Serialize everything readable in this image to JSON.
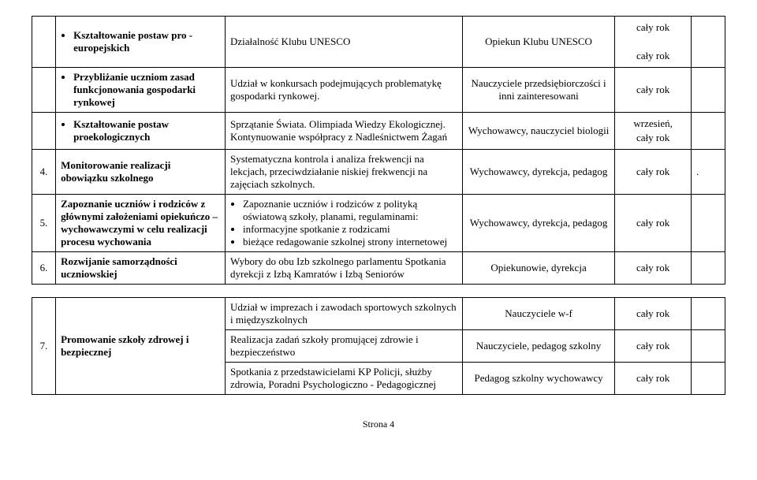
{
  "rows": [
    {
      "num": "",
      "a_items": [
        "Kształtowanie postaw pro - europejskich"
      ],
      "a_bold": true,
      "b_text": "Działalność Klubu UNESCO",
      "c_text": "Opiekun Klubu UNESCO",
      "d_lines": [
        "cały rok",
        "",
        "cały rok"
      ],
      "e_text": ""
    },
    {
      "num": "",
      "a_items": [
        "Przybliżanie uczniom zasad funkcjonowania gospodarki rynkowej"
      ],
      "a_bold": true,
      "b_text": "Udział w konkursach podejmujących problematykę gospodarki rynkowej.",
      "c_text": "Nauczyciele przedsiębiorczości i inni zainteresowani",
      "d_lines": [
        "cały rok"
      ],
      "e_text": ""
    },
    {
      "num": "",
      "a_items": [
        "Kształtowanie postaw proekologicznych"
      ],
      "a_bold": true,
      "b_text": "Sprzątanie Świata. Olimpiada Wiedzy Ekologicznej. Kontynuowanie współpracy z Nadleśnictwem Żagań",
      "c_text": "Wychowawcy, nauczyciel biologii",
      "d_lines": [
        "wrzesień,",
        "cały rok"
      ],
      "e_text": ""
    },
    {
      "num": "4.",
      "a_plain": "Monitorowanie realizacji obowiązku szkolnego",
      "a_bold": true,
      "b_text": "Systematyczna kontrola i analiza frekwencji na lekcjach, przeciwdziałanie niskiej frekwencji na zajęciach szkolnych.",
      "c_text": "Wychowawcy, dyrekcja, pedagog",
      "d_lines": [
        "cały rok"
      ],
      "e_text": "."
    },
    {
      "num": "5.",
      "a_plain": "Zapoznanie uczniów i rodziców z głównymi założeniami opiekuńczo – wychowawczymi w celu realizacji procesu wychowania",
      "a_bold": true,
      "b_items": [
        "Zapoznanie uczniów i rodziców z polityką oświatową szkoły, planami, regulaminami:",
        "informacyjne spotkanie z rodzicami",
        "bieżące redagowanie szkolnej strony internetowej"
      ],
      "c_text": "Wychowawcy, dyrekcja, pedagog",
      "d_lines": [
        "cały rok"
      ],
      "e_text": ""
    },
    {
      "num": "6.",
      "a_plain": "Rozwijanie samorządności uczniowskiej",
      "a_bold": true,
      "b_text": "Wybory do obu Izb szkolnego parlamentu Spotkania dyrekcji z Izbą Kamratów i Izbą Seniorów",
      "c_text": "Opiekunowie, dyrekcja",
      "d_lines": [
        "cały rok"
      ],
      "e_text": ""
    }
  ],
  "block2": {
    "num": "7.",
    "a_plain": "Promowanie szkoły zdrowej i bezpiecznej",
    "sub": [
      {
        "b_text": "Udział w imprezach i zawodach sportowych szkolnych i międzyszkolnych",
        "c_text": "Nauczyciele w-f",
        "d_lines": [
          "cały rok"
        ],
        "e_text": ""
      },
      {
        "b_text": "Realizacja zadań szkoły promującej zdrowie i bezpieczeństwo",
        "c_text": "Nauczyciele, pedagog szkolny",
        "d_lines": [
          "cały rok"
        ],
        "e_text": ""
      },
      {
        "b_text": "Spotkania z przedstawicielami KP Policji, służby zdrowia, Poradni Psychologiczno - Pedagogicznej",
        "c_text": "Pedagog szkolny wychowawcy",
        "d_lines": [
          "cały rok"
        ],
        "e_text": ""
      }
    ]
  },
  "footer": "Strona 4"
}
